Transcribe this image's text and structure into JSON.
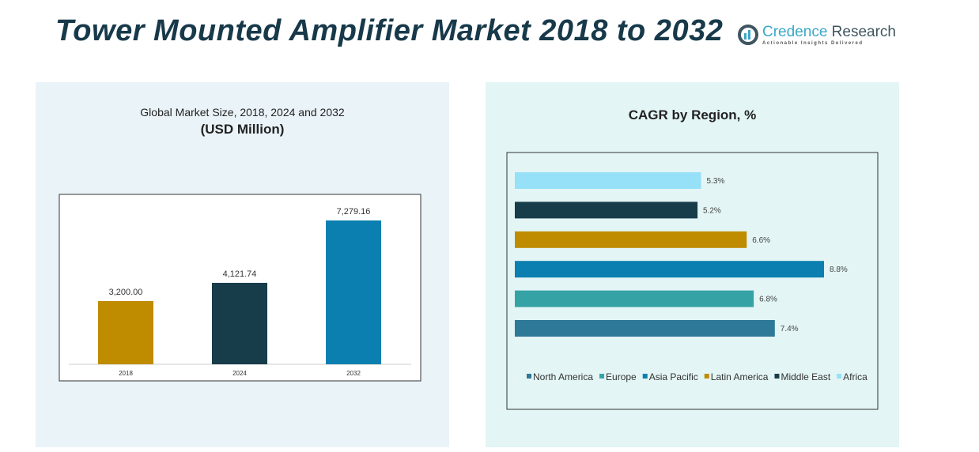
{
  "header": {
    "title": "Tower Mounted Amplifier Market 2018 to 2032",
    "logo_name_1": "Credence",
    "logo_name_2": " Research",
    "logo_tagline": "Actionable Insights Delivered"
  },
  "left_panel": {
    "title": "Global Market Size, 2018, 2024 and 2032",
    "subtitle": "(USD Million)"
  },
  "right_panel": {
    "title": "CAGR by Region, %"
  },
  "chart_data": [
    {
      "type": "bar",
      "title": "Global Market Size, 2018, 2024 and 2032",
      "ylabel": "(USD Million)",
      "categories": [
        "2018",
        "2024",
        "2032"
      ],
      "values": [
        3200.0,
        4121.74,
        7279.16
      ],
      "labels": [
        "3,200.00",
        "4,121.74",
        "7,279.16"
      ],
      "colors": [
        "#bf8c00",
        "#173c4a",
        "#0a7fb0"
      ],
      "grid": false
    },
    {
      "type": "bar",
      "orientation": "horizontal",
      "title": "CAGR by Region, %",
      "categories": [
        "North America",
        "Europe",
        "Asia Pacific",
        "Latin America",
        "Middle East",
        "Africa"
      ],
      "values": [
        7.4,
        6.8,
        8.8,
        6.6,
        5.2,
        5.3
      ],
      "labels": [
        "7.4%",
        "6.8%",
        "8.8%",
        "6.6%",
        "5.2%",
        "5.3%"
      ],
      "colors": [
        "#2e7898",
        "#35a3a5",
        "#0a7fb0",
        "#bf8c00",
        "#173c4a",
        "#96e0f8"
      ],
      "legend": "bottom",
      "grid": false
    }
  ]
}
